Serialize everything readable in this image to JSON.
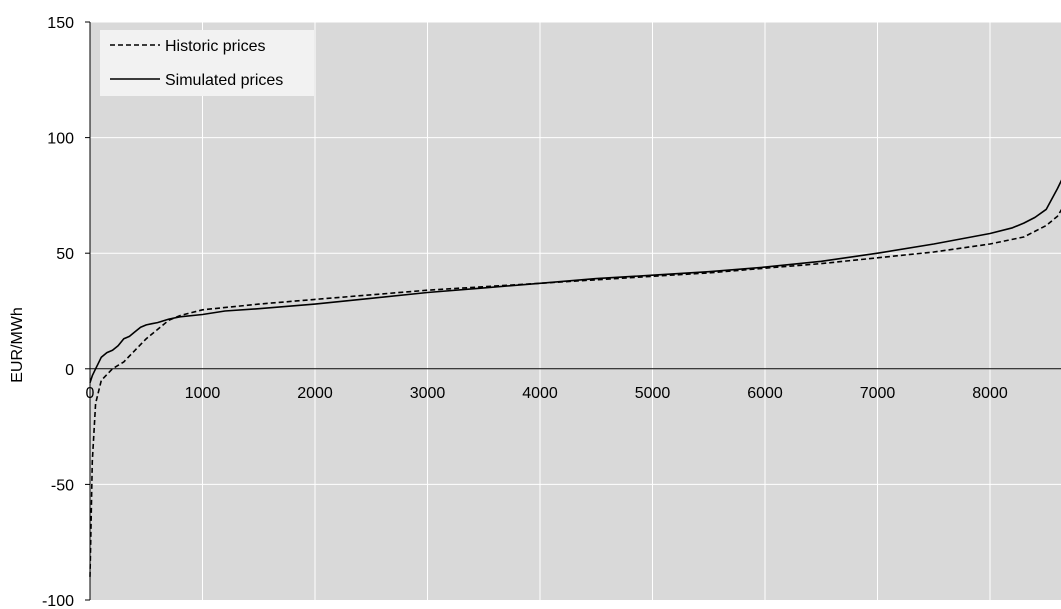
{
  "chart_data": {
    "type": "line",
    "title": "",
    "xlabel": "",
    "ylabel": "EUR/MWh",
    "xlim": [
      0,
      8700
    ],
    "ylim": [
      -100,
      150
    ],
    "x_ticks": [
      0,
      1000,
      2000,
      3000,
      4000,
      5000,
      6000,
      7000,
      8000
    ],
    "y_ticks": [
      150,
      100,
      50,
      0,
      -50,
      -100
    ],
    "grid": true,
    "legend_position": "top-left",
    "colors": {
      "plot_background": "#d9d9d9",
      "grid": "#ffffff",
      "line": "#000000",
      "legend_background": "#f2f2f2"
    },
    "series": [
      {
        "name": "Historic prices",
        "style": "dashed",
        "x": [
          0,
          20,
          50,
          100,
          200,
          300,
          400,
          500,
          600,
          700,
          800,
          1000,
          1500,
          2000,
          2500,
          3000,
          3500,
          4000,
          4500,
          5000,
          5500,
          6000,
          6500,
          7000,
          7500,
          8000,
          8300,
          8500,
          8600,
          8700
        ],
        "y": [
          -90,
          -40,
          -15,
          -5,
          0,
          3,
          8,
          13,
          17,
          21,
          23,
          25.5,
          28,
          30,
          32,
          34,
          35.5,
          37,
          38.5,
          40,
          41.5,
          43.5,
          45.5,
          48,
          50.5,
          54,
          57,
          62,
          66,
          74
        ]
      },
      {
        "name": "Simulated prices",
        "style": "solid",
        "x": [
          0,
          20,
          50,
          70,
          100,
          150,
          200,
          250,
          300,
          350,
          400,
          450,
          500,
          550,
          600,
          700,
          800,
          1000,
          1200,
          1500,
          2000,
          2500,
          3000,
          3500,
          4000,
          4500,
          5000,
          5500,
          6000,
          6500,
          7000,
          7500,
          8000,
          8200,
          8300,
          8400,
          8500,
          8600,
          8700
        ],
        "y": [
          -6,
          -3,
          0,
          2,
          5,
          7,
          8,
          10,
          13,
          14,
          16,
          18,
          19,
          19.5,
          20,
          21.5,
          22.5,
          23.5,
          25,
          26,
          28,
          30.5,
          33,
          35,
          37,
          39,
          40.5,
          42,
          44,
          46.5,
          50,
          54,
          58.5,
          61,
          63,
          65.5,
          69,
          78,
          88
        ]
      }
    ]
  }
}
